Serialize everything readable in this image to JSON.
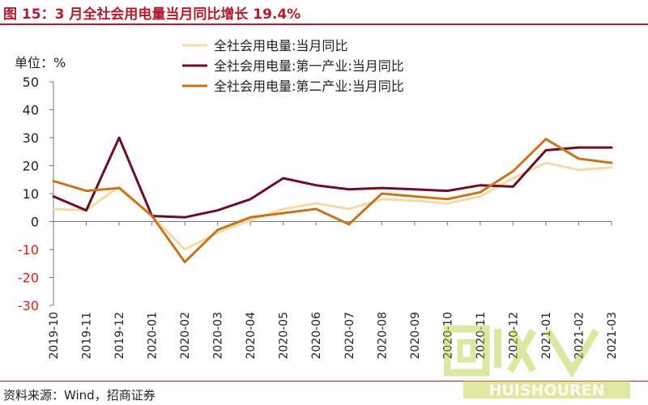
{
  "title": "图 15：3 月全社会用电量当月同比增长 19.4%",
  "source": "资料来源：Wind，招商证券",
  "watermark": {
    "brand": "HUISHOUREN",
    "glyphs": "回收"
  },
  "colors": {
    "title_red": "#b01c2e",
    "total": "#f0dcaa",
    "primary": "#6b1020",
    "secondary": "#c8741e",
    "negative_tick": "#d42020"
  },
  "chart_data": {
    "type": "line",
    "unit_label": "单位：%",
    "categories": [
      "2019-10",
      "2019-11",
      "2019-12",
      "2020-01",
      "2020-02",
      "2020-03",
      "2020-04",
      "2020-05",
      "2020-06",
      "2020-07",
      "2020-08",
      "2020-09",
      "2020-10",
      "2020-11",
      "2020-12",
      "2021-01",
      "2021-02",
      "2021-03"
    ],
    "ylim": [
      -30,
      50
    ],
    "yticks": [
      50,
      40,
      30,
      20,
      10,
      0,
      -10,
      -20,
      -30
    ],
    "legend_position": "top",
    "grid": false,
    "series": [
      {
        "name": "全社会用电量:当月同比",
        "values": [
          4.5,
          4.0,
          12.5,
          2.0,
          -10.0,
          -4.0,
          0.5,
          4.5,
          6.5,
          4.5,
          8.0,
          7.5,
          6.5,
          9.0,
          15.5,
          21.0,
          18.5,
          19.4
        ]
      },
      {
        "name": "全社会用电量:第一产业:当月同比",
        "values": [
          9.0,
          4.0,
          30.0,
          2.0,
          1.5,
          4.0,
          8.0,
          15.5,
          13.0,
          11.5,
          12.0,
          11.5,
          11.0,
          13.0,
          12.5,
          25.5,
          26.5,
          26.5
        ]
      },
      {
        "name": "全社会用电量:第二产业:当月同比",
        "values": [
          14.5,
          11.0,
          12.0,
          2.0,
          -14.5,
          -3.0,
          1.5,
          3.0,
          4.5,
          -1.0,
          10.0,
          9.0,
          8.0,
          10.5,
          18.0,
          29.5,
          22.5,
          21.0
        ]
      }
    ]
  }
}
